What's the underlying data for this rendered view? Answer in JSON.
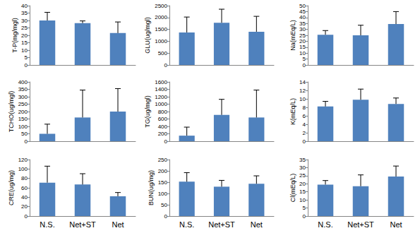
{
  "chart_data": [
    {
      "type": "bar",
      "y_label": "T-P(mg/mgl)",
      "categories": [
        null,
        null,
        null
      ],
      "values": [
        30,
        28.2,
        21.5
      ],
      "errors": [
        5.5,
        1.5,
        7.5
      ],
      "color": "#4f81bd",
      "ylim": [
        0,
        40
      ],
      "yticks": [
        0,
        5,
        10,
        15,
        20,
        25,
        30,
        35,
        40
      ],
      "grid": false
    },
    {
      "type": "bar",
      "y_label": "GLU(ug/mgl)",
      "categories": [
        null,
        null,
        null
      ],
      "values": [
        1370,
        1780,
        1400
      ],
      "errors": [
        650,
        570,
        650
      ],
      "color": "#4f81bd",
      "ylim": [
        0,
        2500
      ],
      "yticks": [
        0,
        500,
        1000,
        1500,
        2000,
        2500
      ],
      "grid": false
    },
    {
      "type": "bar",
      "y_label": "Na(mEq/L)",
      "categories": [
        null,
        null,
        null
      ],
      "values": [
        25.5,
        25,
        34.5
      ],
      "errors": [
        3.5,
        8.5,
        10.5
      ],
      "color": "#4f81bd",
      "ylim": [
        0,
        50
      ],
      "yticks": [
        0,
        5,
        10,
        15,
        20,
        25,
        30,
        35,
        40,
        45,
        50
      ],
      "grid": false
    },
    {
      "type": "bar",
      "y_label": "TCHO(ug/mgl)",
      "categories": [
        null,
        null,
        null
      ],
      "values": [
        50,
        160,
        200
      ],
      "errors": [
        65,
        185,
        155
      ],
      "color": "#4f81bd",
      "ylim": [
        0,
        400
      ],
      "yticks": [
        0,
        50,
        100,
        150,
        200,
        250,
        300,
        350,
        400
      ],
      "grid": false
    },
    {
      "type": "bar",
      "y_label": "TG(ug/mgl)",
      "categories": [
        null,
        null,
        null
      ],
      "values": [
        150,
        710,
        640
      ],
      "errors": [
        230,
        420,
        740
      ],
      "color": "#4f81bd",
      "ylim": [
        0,
        1600
      ],
      "yticks": [
        0,
        200,
        400,
        600,
        800,
        1000,
        1200,
        1400,
        1600
      ],
      "grid": false
    },
    {
      "type": "bar",
      "y_label": "K(mEq/L)",
      "categories": [
        null,
        null,
        null
      ],
      "values": [
        8.2,
        9.8,
        8.8
      ],
      "errors": [
        1.2,
        2.5,
        1.4
      ],
      "color": "#4f81bd",
      "ylim": [
        0,
        14
      ],
      "yticks": [
        0,
        2,
        4,
        6,
        8,
        10,
        12,
        14
      ],
      "grid": false
    },
    {
      "type": "bar",
      "y_label": "CRE(ug/mg)",
      "categories": [
        "N.S.",
        "Net+ST",
        "Net"
      ],
      "values": [
        71,
        67,
        42
      ],
      "errors": [
        35,
        23,
        8
      ],
      "color": "#4f81bd",
      "ylim": [
        0,
        120
      ],
      "yticks": [
        0,
        20,
        40,
        60,
        80,
        100,
        120
      ],
      "grid": false
    },
    {
      "type": "bar",
      "y_label": "BUN(ug/mg)",
      "categories": [
        "N.S.",
        "Net+ST",
        "Net"
      ],
      "values": [
        152,
        130,
        143
      ],
      "errors": [
        40,
        28,
        35
      ],
      "color": "#4f81bd",
      "ylim": [
        0,
        250
      ],
      "yticks": [
        0,
        50,
        100,
        150,
        200,
        250
      ],
      "grid": false
    },
    {
      "type": "bar",
      "y_label": "Cl(mEq/L)",
      "categories": [
        "N.S.",
        "Net+ST",
        "Net"
      ],
      "values": [
        19.5,
        18.5,
        24.5
      ],
      "errors": [
        2.5,
        7,
        6.5
      ],
      "color": "#4f81bd",
      "ylim": [
        0,
        35
      ],
      "yticks": [
        0,
        5,
        10,
        15,
        20,
        25,
        30,
        35
      ],
      "grid": false
    }
  ]
}
